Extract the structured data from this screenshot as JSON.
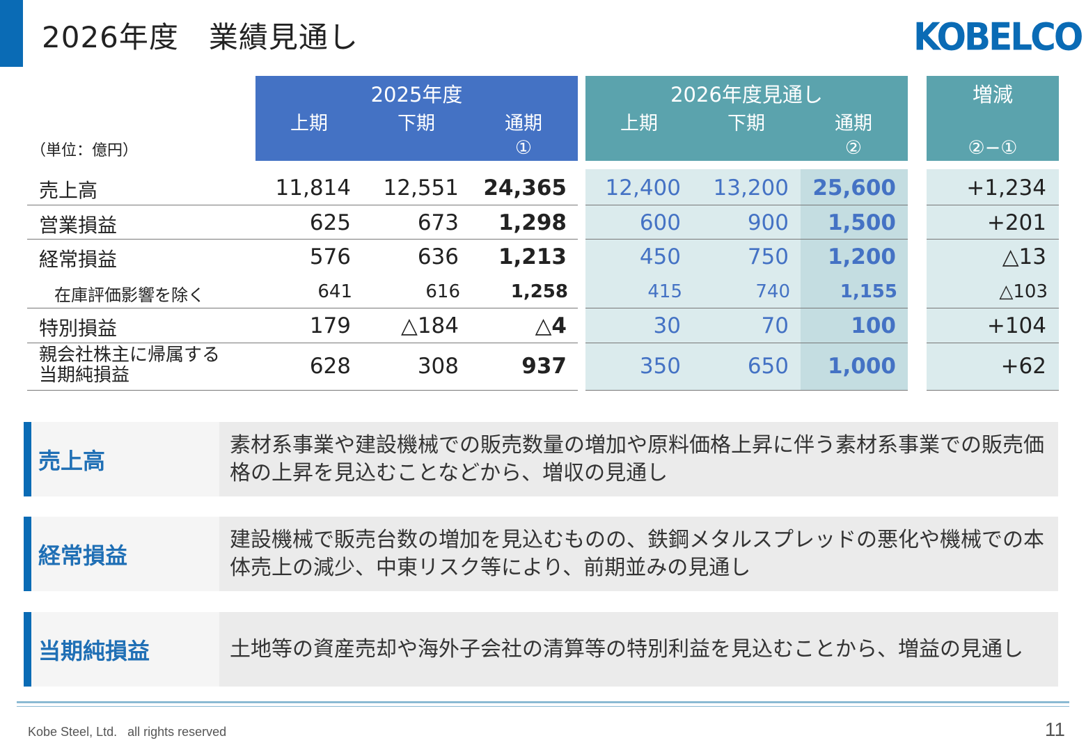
{
  "page": {
    "title": "2026年度　業績見通し",
    "logo": "KOBELCO",
    "unit": "（単位：億円）",
    "footer": "Kobe Steel, Ltd.   all rights reserved",
    "page_number": "11"
  },
  "header": {
    "fy2025": {
      "year": "2025年度",
      "h1": "上期",
      "h2": "下期",
      "full": "通期",
      "full_mark": "①"
    },
    "fy2026": {
      "year": "2026年度見通し",
      "h1": "上期",
      "h2": "下期",
      "full": "通期",
      "full_mark": "②"
    },
    "diff": {
      "title": "増減",
      "mark": "②−①"
    }
  },
  "rows": [
    {
      "label": "売上高",
      "label2": "",
      "v25h1": "11,814",
      "v25h2": "12,551",
      "v25": "24,365",
      "v26h1": "12,400",
      "v26h2": "13,200",
      "v26": "25,600",
      "diff": "+1,234"
    },
    {
      "label": "営業損益",
      "label2": "",
      "v25h1": "625",
      "v25h2": "673",
      "v25": "1,298",
      "v26h1": "600",
      "v26h2": "900",
      "v26": "1,500",
      "diff": "+201"
    },
    {
      "label": "経常損益",
      "label2": "",
      "v25h1": "576",
      "v25h2": "636",
      "v25": "1,213",
      "v26h1": "450",
      "v26h2": "750",
      "v26": "1,200",
      "diff": "△13"
    },
    {
      "label": "在庫評価影響を除く",
      "label2": "",
      "v25h1": "641",
      "v25h2": "616",
      "v25": "1,258",
      "v26h1": "415",
      "v26h2": "740",
      "v26": "1,155",
      "diff": "△103"
    },
    {
      "label": "特別損益",
      "label2": "",
      "v25h1": "179",
      "v25h2": "△184",
      "v25": "△4",
      "v26h1": "30",
      "v26h2": "70",
      "v26": "100",
      "diff": "+104"
    },
    {
      "label": "親会社株主に帰属する",
      "label2": "当期純損益",
      "v25h1": "628",
      "v25h2": "308",
      "v25": "937",
      "v26h1": "350",
      "v26h2": "650",
      "v26": "1,000",
      "diff": "+62"
    }
  ],
  "comments": [
    {
      "head": "売上高",
      "text": "素材系事業や建設機械での販売数量の増加や原料価格上昇に伴う素材系事業での販売価格の上昇を見込むことなどから、増収の見通し"
    },
    {
      "head": "経常損益",
      "text": "建設機械で販売台数の増加を見込むものの、鉄鋼メタルスプレッドの悪化や機械での本体売上の減少、中東リスク等により、前期並みの見通し"
    },
    {
      "head": "当期純損益",
      "text": "土地等の資産売却や海外子会社の清算等の特別利益を見込むことから、増益の見通し"
    }
  ]
}
